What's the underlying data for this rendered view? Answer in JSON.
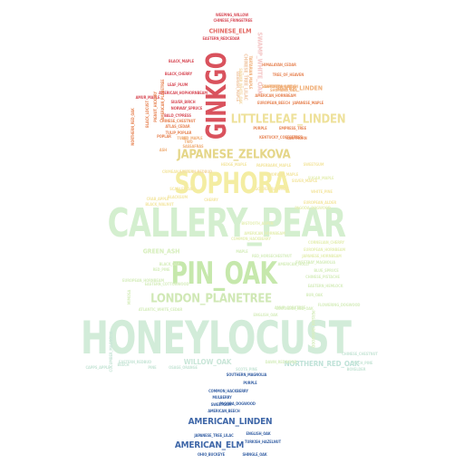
{
  "words": [
    {
      "text": "HONEYLOCUST",
      "color": "#d2ecd9",
      "weight": 1.0
    },
    {
      "text": "CALLERY_PEAR",
      "color": "#d4efcf",
      "weight": 0.85
    },
    {
      "text": "PIN_OAK",
      "color": "#c6e8ac",
      "weight": 0.72
    },
    {
      "text": "SOPHORA",
      "color": "#f4eda2",
      "weight": 0.62
    },
    {
      "text": "GINKGO",
      "color": "#d9525d",
      "weight": 0.68
    },
    {
      "text": "JAPANESE_ZELKOVA",
      "color": "#e5d688",
      "weight": 0.4
    },
    {
      "text": "LITTLELEAF_LINDEN",
      "color": "#eee19a",
      "weight": 0.38
    },
    {
      "text": "LONDON_PLANETREE",
      "color": "#d0e8b5",
      "weight": 0.36
    },
    {
      "text": "AMERICAN_LINDEN",
      "color": "#3f67a8",
      "weight": 0.28
    },
    {
      "text": "AMERICAN_ELM",
      "color": "#3f67a8",
      "weight": 0.28
    },
    {
      "text": "WILLOW_OAK",
      "color": "#c9e6d8",
      "weight": 0.2
    },
    {
      "text": "NORTHERN_RED_OAK",
      "color": "#bfe2d8",
      "weight": 0.2
    },
    {
      "text": "GREEN_ASH",
      "color": "#d6eebb",
      "weight": 0.18
    },
    {
      "text": "SILVER_LINDEN",
      "color": "#f0b07a",
      "weight": 0.18
    },
    {
      "text": "CHINESE_ELM",
      "color": "#e36a64",
      "weight": 0.18
    },
    {
      "text": "SWAMP_WHITE_OAK",
      "color": "#f4c6c6",
      "weight": 0.16
    },
    {
      "text": "WEEPING_WILLOW",
      "color": "#d9525d",
      "weight": 0.08
    },
    {
      "text": "CHINESE_FRINGETREE",
      "color": "#d9525d",
      "weight": 0.08
    },
    {
      "text": "EASTERN_REDCEDAR",
      "color": "#d9525d",
      "weight": 0.08
    },
    {
      "text": "BLACK_MAPLE",
      "color": "#d9525d",
      "weight": 0.08
    },
    {
      "text": "HIMALAYAN_CEDAR",
      "color": "#e88a5c",
      "weight": 0.08
    },
    {
      "text": "TREE_OF_HEAVEN",
      "color": "#e88a5c",
      "weight": 0.08
    },
    {
      "text": "BLACK_CHERRY",
      "color": "#d9525d",
      "weight": 0.08
    },
    {
      "text": "LEAF_PLUM",
      "color": "#d9525d",
      "weight": 0.08
    },
    {
      "text": "AMERICAN_HORNBEAM",
      "color": "#e88a5c",
      "weight": 0.08
    },
    {
      "text": "JAPANESE_MAPLE",
      "color": "#e88a5c",
      "weight": 0.08
    },
    {
      "text": "AMUR_MAPLE",
      "color": "#d9525d",
      "weight": 0.08
    },
    {
      "text": "SILVER_BIRCH",
      "color": "#d9525d",
      "weight": 0.08
    },
    {
      "text": "NORWAY_SPRUCE",
      "color": "#d9525d",
      "weight": 0.08
    },
    {
      "text": "AMERICAN_HOPHORNBEAM",
      "color": "#d9525d",
      "weight": 0.08
    },
    {
      "text": "BALD_CYPRESS",
      "color": "#d9525d",
      "weight": 0.08
    },
    {
      "text": "EUROPEAN_BEECH",
      "color": "#e88a5c",
      "weight": 0.08
    },
    {
      "text": "CHINESE_CHESTNUT",
      "color": "#e88a5c",
      "weight": 0.08
    },
    {
      "text": "ATLAS_CEDAR",
      "color": "#e88a5c",
      "weight": 0.08
    },
    {
      "text": "PURPLE",
      "color": "#e88a5c",
      "weight": 0.08
    },
    {
      "text": "EMPRESS_TREE",
      "color": "#e88a5c",
      "weight": 0.08
    },
    {
      "text": "KENTUCKY_COFFEETREE",
      "color": "#e88a5c",
      "weight": 0.08
    },
    {
      "text": "HAWTHORN",
      "color": "#e88a5c",
      "weight": 0.08
    },
    {
      "text": "TULIP_POPLAR",
      "color": "#e88a5c",
      "weight": 0.08
    },
    {
      "text": "POPLAR",
      "color": "#e88a5c",
      "weight": 0.08
    },
    {
      "text": "RED_MAPLE",
      "color": "#f0b07a",
      "weight": 0.08
    },
    {
      "text": "TULIP",
      "color": "#f0b07a",
      "weight": 0.08
    },
    {
      "text": "TWO",
      "color": "#f0b07a",
      "weight": 0.08
    },
    {
      "text": "ASH",
      "color": "#f0b07a",
      "weight": 0.08
    },
    {
      "text": "SASSAFRAS",
      "color": "#f0b07a",
      "weight": 0.08
    },
    {
      "text": "NORTHERN_RED_OAK",
      "color": "#e88a5c",
      "weight": 0.08
    },
    {
      "text": "BLACK_LOCUST",
      "color": "#e88a5c",
      "weight": 0.08
    },
    {
      "text": "PIGNUT_HICKORY",
      "color": "#e88a5c",
      "weight": 0.08
    },
    {
      "text": "AMERICAN_PLANETREE",
      "color": "#e88a5c",
      "weight": 0.08
    },
    {
      "text": "TARTARIAN_MAPLE",
      "color": "#f0b07a",
      "weight": 0.08
    },
    {
      "text": "SAWTOOTH_OAK",
      "color": "#f0b07a",
      "weight": 0.08
    },
    {
      "text": "EUROPEAN_LINDEN",
      "color": "#f0b07a",
      "weight": 0.08
    },
    {
      "text": "SHUMARD_OAK",
      "color": "#f0b07a",
      "weight": 0.08
    },
    {
      "text": "CHINESE_TREE_LILAC",
      "color": "#f0c7a6",
      "weight": 0.08
    },
    {
      "text": "TATARIAN_MAPLE",
      "color": "#f0c7a6",
      "weight": 0.08
    },
    {
      "text": "SWAMP_WHITE_OAK",
      "color": "#f4d9a6",
      "weight": 0.08
    },
    {
      "text": "EASTERN_REDBUD",
      "color": "#f4d9a6",
      "weight": 0.08
    },
    {
      "text": "BLACKGUM",
      "color": "#f4e7a6",
      "weight": 0.08
    },
    {
      "text": "SWEETGUM",
      "color": "#f4e7a6",
      "weight": 0.08
    },
    {
      "text": "NORWAY_MAPLE",
      "color": "#f4e7a6",
      "weight": 0.08
    },
    {
      "text": "HEDGE_MAPLE",
      "color": "#f4e7a6",
      "weight": 0.08
    },
    {
      "text": "PAPERBARK_MAPLE",
      "color": "#f4e7a6",
      "weight": 0.08
    },
    {
      "text": "CHERRY",
      "color": "#f4e7a6",
      "weight": 0.08
    },
    {
      "text": "GOLDEN_RAINTREE",
      "color": "#f4e7a6",
      "weight": 0.08
    },
    {
      "text": "SILVER_MAPLE",
      "color": "#f4e7a6",
      "weight": 0.08
    },
    {
      "text": "SCARLET_OAK",
      "color": "#f4e7a6",
      "weight": 0.08
    },
    {
      "text": "CRIMEAN_LINDEN",
      "color": "#f4e7a6",
      "weight": 0.08
    },
    {
      "text": "WHITE_PINE",
      "color": "#f4e7a6",
      "weight": 0.08
    },
    {
      "text": "CRAB_APPLE",
      "color": "#f4e7a6",
      "weight": 0.08
    },
    {
      "text": "BLACK_WALNUT",
      "color": "#f4e7a6",
      "weight": 0.08
    },
    {
      "text": "EUROPEAN_ALDER",
      "color": "#f4e7a6",
      "weight": 0.08
    },
    {
      "text": "SUGAR_MAPLE",
      "color": "#e6efb6",
      "weight": 0.08
    },
    {
      "text": "PAGODA_DOGWOOD",
      "color": "#e6efb6",
      "weight": 0.08
    },
    {
      "text": "BIGTOOTH_ASPEN",
      "color": "#e6efb6",
      "weight": 0.08
    },
    {
      "text": "AMERICAN_HORNBEAM",
      "color": "#e6efb6",
      "weight": 0.08
    },
    {
      "text": "COMMON_HACKBERRY",
      "color": "#e6efb6",
      "weight": 0.08
    },
    {
      "text": "CORNELIAN_CHERRY",
      "color": "#e6efb6",
      "weight": 0.08
    },
    {
      "text": "EUROPEAN_HORNBEAM",
      "color": "#e6efb6",
      "weight": 0.08
    },
    {
      "text": "JAPANESE_HORNBEAM",
      "color": "#e6efb6",
      "weight": 0.08
    },
    {
      "text": "BLACK_OAK",
      "color": "#d8eec0",
      "weight": 0.08
    },
    {
      "text": "RED_PINE",
      "color": "#d8eec0",
      "weight": 0.08
    },
    {
      "text": "MAPLE",
      "color": "#d8eec0",
      "weight": 0.08
    },
    {
      "text": "SWEETBAY_MAGNOLIA",
      "color": "#d8eec0",
      "weight": 0.08
    },
    {
      "text": "AMERICAN_HOLLY",
      "color": "#d8eec0",
      "weight": 0.08
    },
    {
      "text": "BLUE_SPRUCE",
      "color": "#d8eec0",
      "weight": 0.08
    },
    {
      "text": "CHINESE_PISTACHE",
      "color": "#d8eec0",
      "weight": 0.08
    },
    {
      "text": "RED_HORSECHESTNUT",
      "color": "#d8eec0",
      "weight": 0.08
    },
    {
      "text": "BUR_OAK",
      "color": "#d8eec0",
      "weight": 0.08
    },
    {
      "text": "EASTERN_HEMLOCK",
      "color": "#d8eec0",
      "weight": 0.08
    },
    {
      "text": "SOUTHERN_RED_OAK",
      "color": "#d8eec0",
      "weight": 0.08
    },
    {
      "text": "FLOWERING_DOGWOOD",
      "color": "#d8eec0",
      "weight": 0.08
    },
    {
      "text": "ATLANTIC_WHITE_CEDAR",
      "color": "#d8eec0",
      "weight": 0.08
    },
    {
      "text": "EASTERN_COTTONWOOD",
      "color": "#d8eec0",
      "weight": 0.08
    },
    {
      "text": "MIMOSA",
      "color": "#d8eec0",
      "weight": 0.08
    },
    {
      "text": "EUROPEAN_HORNBEAM",
      "color": "#d8eec0",
      "weight": 0.08
    },
    {
      "text": "AMUR_CORKTREE",
      "color": "#d8eec0",
      "weight": 0.08
    },
    {
      "text": "ENGLISH_OAK",
      "color": "#d8eec0",
      "weight": 0.08
    },
    {
      "text": "DAWN_REDWOOD",
      "color": "#d8eec0",
      "weight": 0.08
    },
    {
      "text": "PERSIAN_IRONWOOD",
      "color": "#d8eec0",
      "weight": 0.08
    },
    {
      "text": "CHINESE_CHESTNUT",
      "color": "#c9e6d8",
      "weight": 0.08
    },
    {
      "text": "PITCH_PINE",
      "color": "#c9e6d8",
      "weight": 0.08
    },
    {
      "text": "BOXELDER",
      "color": "#c9e6d8",
      "weight": 0.08
    },
    {
      "text": "CAPPS_APPLE",
      "color": "#c9e6d8",
      "weight": 0.08
    },
    {
      "text": "BEECH",
      "color": "#c9e6d8",
      "weight": 0.08
    },
    {
      "text": "PINE",
      "color": "#c9e6d8",
      "weight": 0.08
    },
    {
      "text": "EASTERN_REDBUD",
      "color": "#c9e6d8",
      "weight": 0.08
    },
    {
      "text": "OSAGE_ORANGE",
      "color": "#c9e6d8",
      "weight": 0.08
    },
    {
      "text": "SCOTS_PINE",
      "color": "#c9e6d8",
      "weight": 0.08
    },
    {
      "text": "CUCUMBER_MAGNOLIA",
      "color": "#c9e6d8",
      "weight": 0.08
    },
    {
      "text": "PURPLE",
      "color": "#3f67a8",
      "weight": 0.08
    },
    {
      "text": "COMMON_HACKBERRY",
      "color": "#3f67a8",
      "weight": 0.08
    },
    {
      "text": "MULBERRY",
      "color": "#3f67a8",
      "weight": 0.08
    },
    {
      "text": "SWEETGUM",
      "color": "#3f67a8",
      "weight": 0.08
    },
    {
      "text": "PAGODA_DOGWOOD",
      "color": "#3f67a8",
      "weight": 0.08
    },
    {
      "text": "AMERICAN_BEECH",
      "color": "#3f67a8",
      "weight": 0.08
    },
    {
      "text": "JAPANESE_TREE_LILAC",
      "color": "#3f67a8",
      "weight": 0.08
    },
    {
      "text": "ENGLISH_OAK",
      "color": "#3f67a8",
      "weight": 0.08
    },
    {
      "text": "TURKISH_HAZELNUT",
      "color": "#3f67a8",
      "weight": 0.08
    },
    {
      "text": "OHIO_BUCKEYE",
      "color": "#3f67a8",
      "weight": 0.08
    },
    {
      "text": "SHINGLE_OAK",
      "color": "#3f67a8",
      "weight": 0.08
    },
    {
      "text": "SOUTHERN_MAGNOLIA",
      "color": "#3f67a8",
      "weight": 0.08
    }
  ]
}
